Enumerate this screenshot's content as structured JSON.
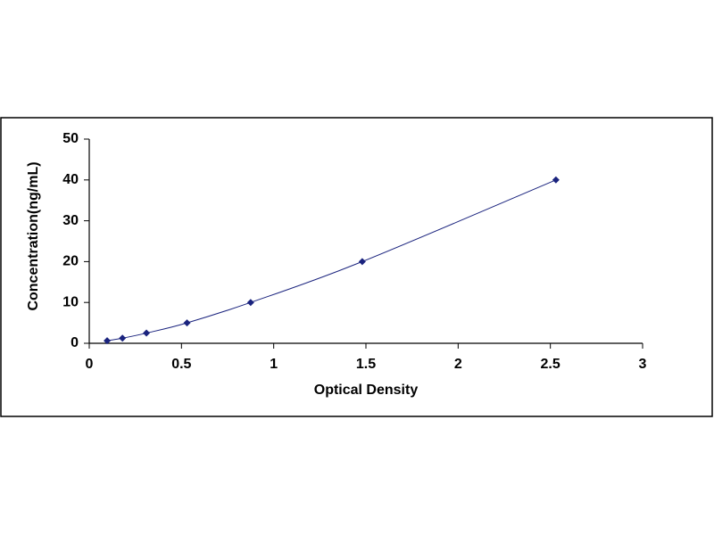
{
  "chart_data": {
    "type": "scatter",
    "x_label": "Optical Density",
    "y_label": "Concentration(ng/mL)",
    "x": [
      0.097,
      0.18,
      0.31,
      0.53,
      0.875,
      1.48,
      2.53
    ],
    "values": [
      0.625,
      1.25,
      2.5,
      5,
      10,
      20,
      40
    ],
    "color": "#1a237e",
    "line_color": "#1a237e",
    "xlim": [
      0,
      3
    ],
    "ylim": [
      0,
      50
    ],
    "xticks": [
      0,
      0.5,
      1,
      1.5,
      2,
      2.5,
      3
    ],
    "yticks": [
      0,
      10,
      20,
      30,
      40,
      50
    ],
    "grid": false
  }
}
